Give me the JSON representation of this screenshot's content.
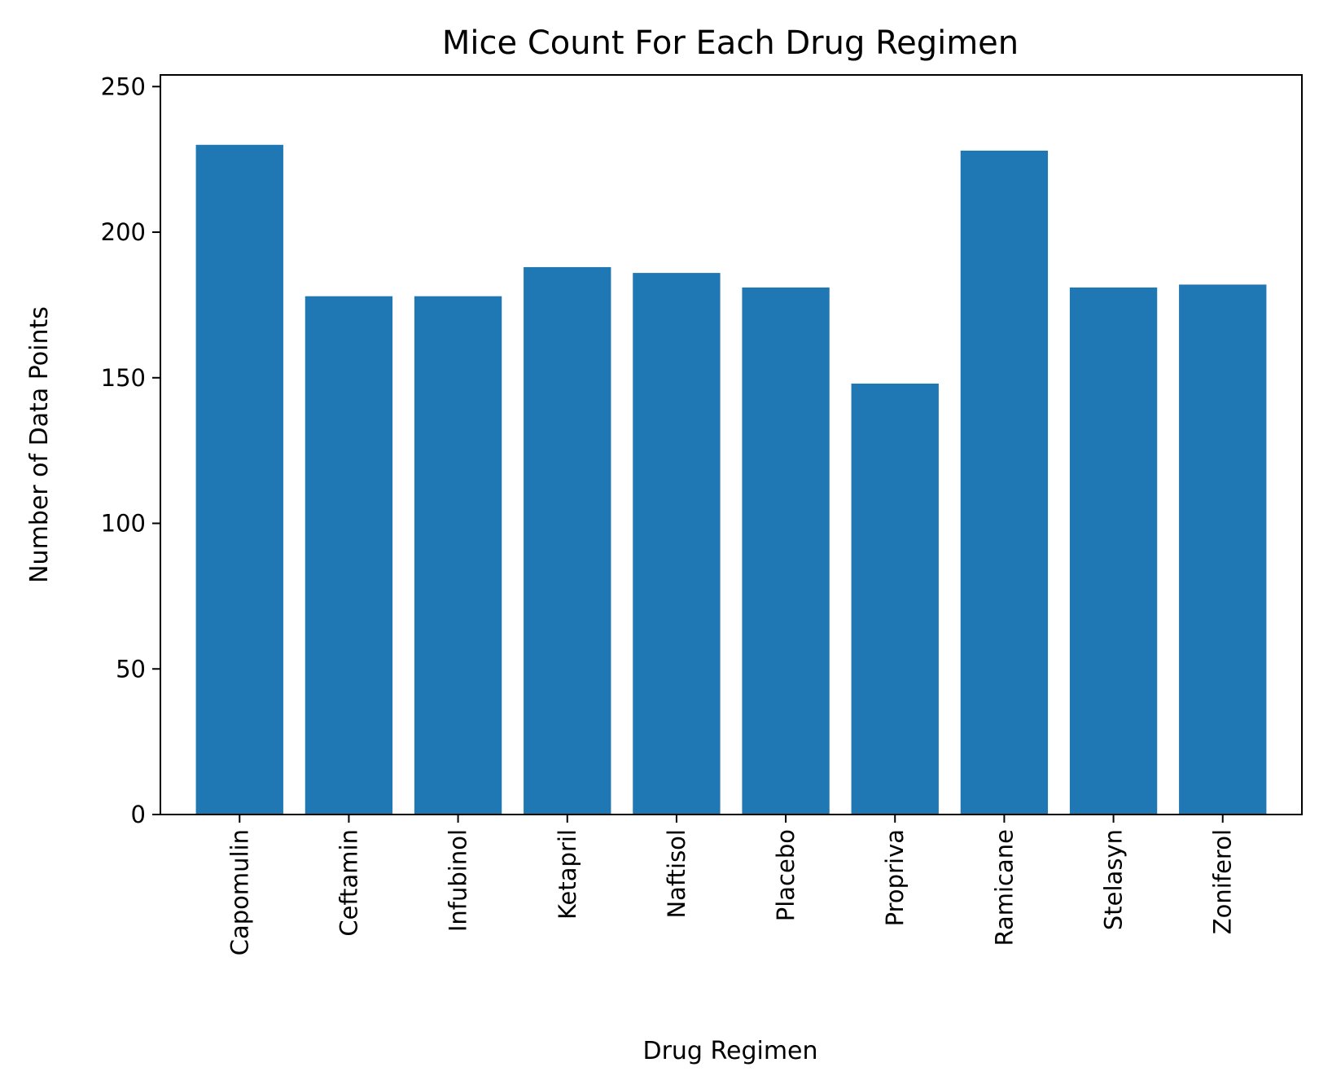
{
  "chart_data": {
    "type": "bar",
    "title": "Mice Count For Each Drug Regimen",
    "xlabel": "Drug Regimen",
    "ylabel": "Number of Data Points",
    "categories": [
      "Capomulin",
      "Ceftamin",
      "Infubinol",
      "Ketapril",
      "Naftisol",
      "Placebo",
      "Propriva",
      "Ramicane",
      "Stelasyn",
      "Zoniferol"
    ],
    "values": [
      230,
      178,
      178,
      188,
      186,
      181,
      148,
      228,
      181,
      182
    ],
    "ylim": [
      0,
      254
    ],
    "yticks": [
      0,
      50,
      100,
      150,
      200,
      250
    ],
    "ytick_labels": [
      "0",
      "50",
      "100",
      "150",
      "200",
      "250"
    ],
    "xtick_rotation": "vertical",
    "grid": false,
    "legend": "none",
    "bar_color": "#1f77b4"
  }
}
